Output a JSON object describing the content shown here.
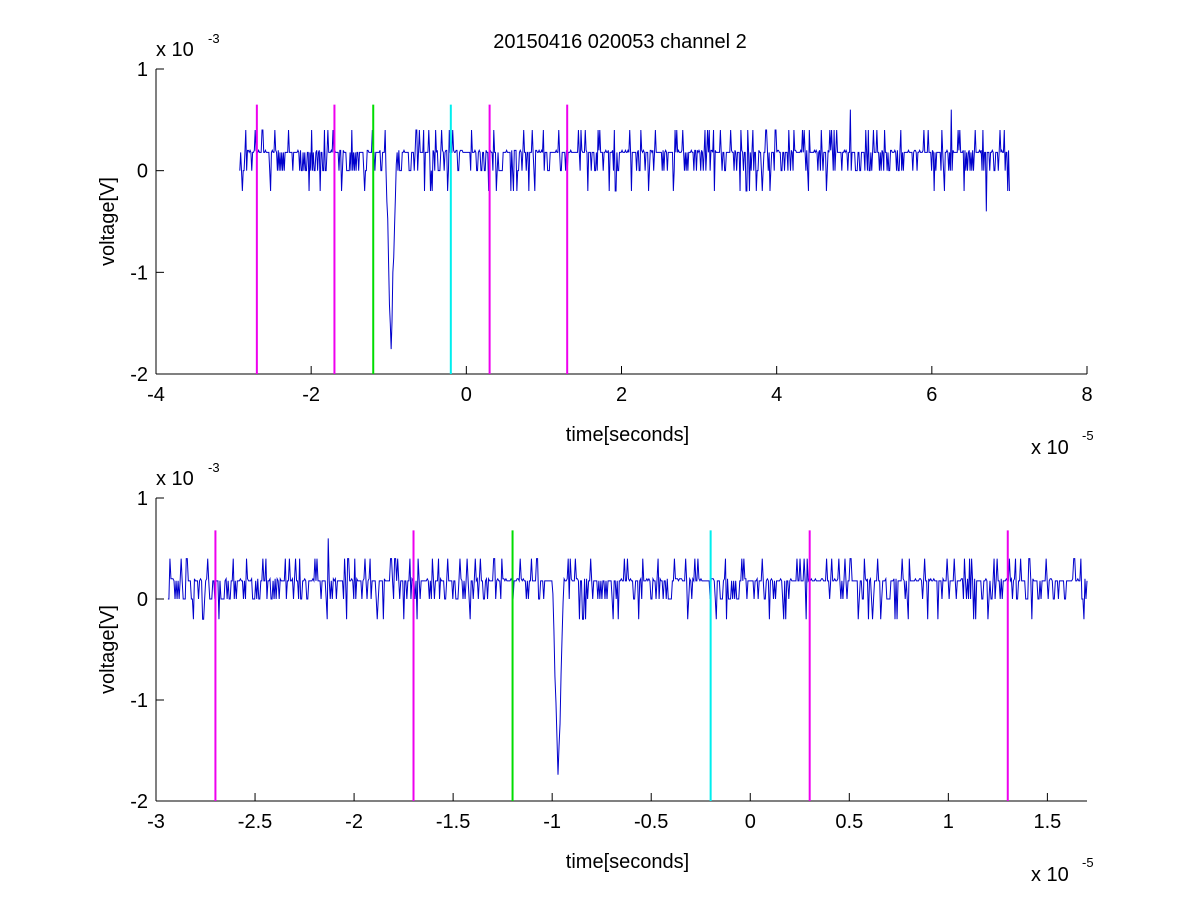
{
  "figure": {
    "title": "20150416 020053 channel 2"
  },
  "colors": {
    "trace": "#0000cc",
    "magenta": "#ee00ee",
    "green": "#00dd00",
    "cyan": "#00eeee"
  },
  "chart_data": [
    {
      "type": "line",
      "title": "20150416 020053 channel 2",
      "xlabel": "time[seconds]",
      "ylabel": "voltage[V]",
      "x_multiplier": "x 10",
      "x_exponent": "-5",
      "y_multiplier": "x 10",
      "y_exponent": "-3",
      "xlim": [
        -4,
        8
      ],
      "ylim": [
        -2,
        1
      ],
      "xticks": [
        -4,
        -2,
        0,
        2,
        4,
        6,
        8
      ],
      "xtick_labels": [
        "-4",
        "-2",
        "0",
        "2",
        "4",
        "6",
        "8"
      ],
      "yticks": [
        -2,
        -1,
        0,
        1
      ],
      "ytick_labels": [
        "-2",
        "-1",
        "0",
        "1"
      ],
      "grid": false,
      "series": [
        {
          "x_range": [
            -2.92,
            7.0
          ],
          "baseline": 0.18,
          "noise_levels": [
            0.0,
            0.2,
            0.4,
            -0.2
          ],
          "spike": {
            "x": -0.97,
            "min": -1.78
          },
          "min_points": [
            {
              "x": -0.95,
              "y": -1.0
            },
            {
              "x": 6.7,
              "y": -0.4
            }
          ],
          "max_points": [
            {
              "x": 4.95,
              "y": 0.6
            },
            {
              "x": 6.25,
              "y": 0.6
            }
          ]
        }
      ],
      "markers": [
        {
          "x": -2.7,
          "color": "magenta",
          "y_top": 0.65
        },
        {
          "x": -1.7,
          "color": "magenta",
          "y_top": 0.65
        },
        {
          "x": -1.2,
          "color": "green",
          "y_top": 0.65
        },
        {
          "x": -0.2,
          "color": "cyan",
          "y_top": 0.65
        },
        {
          "x": 0.3,
          "color": "magenta",
          "y_top": 0.65
        },
        {
          "x": 1.3,
          "color": "magenta",
          "y_top": 0.65
        }
      ]
    },
    {
      "type": "line",
      "title": "",
      "xlabel": "time[seconds]",
      "ylabel": "voltage[V]",
      "x_multiplier": "x 10",
      "x_exponent": "-5",
      "y_multiplier": "x 10",
      "y_exponent": "-3",
      "xlim": [
        -3.0,
        1.7
      ],
      "ylim": [
        -2,
        1
      ],
      "xticks": [
        -3,
        -2.5,
        -2,
        -1.5,
        -1,
        -0.5,
        0,
        0.5,
        1,
        1.5
      ],
      "xtick_labels": [
        "-3",
        "-2.5",
        "-2",
        "-1.5",
        "-1",
        "-0.5",
        "0",
        "0.5",
        "1",
        "1.5"
      ],
      "yticks": [
        -2,
        -1,
        0,
        1
      ],
      "ytick_labels": [
        "-2",
        "-1",
        "0",
        "1"
      ],
      "grid": false,
      "series": [
        {
          "x_range": [
            -2.94,
            1.7
          ],
          "baseline": 0.18,
          "noise_levels": [
            0.0,
            0.2,
            0.4,
            -0.2
          ],
          "spike": {
            "x": -0.97,
            "min": -1.78
          },
          "max_points": [
            {
              "x": -2.13,
              "y": 0.6
            }
          ]
        }
      ],
      "markers": [
        {
          "x": -2.7,
          "color": "magenta",
          "y_top": 0.68
        },
        {
          "x": -1.7,
          "color": "magenta",
          "y_top": 0.68
        },
        {
          "x": -1.2,
          "color": "green",
          "y_top": 0.68
        },
        {
          "x": -0.2,
          "color": "cyan",
          "y_top": 0.68
        },
        {
          "x": 0.3,
          "color": "magenta",
          "y_top": 0.68
        },
        {
          "x": 1.3,
          "color": "magenta",
          "y_top": 0.68
        }
      ]
    }
  ]
}
